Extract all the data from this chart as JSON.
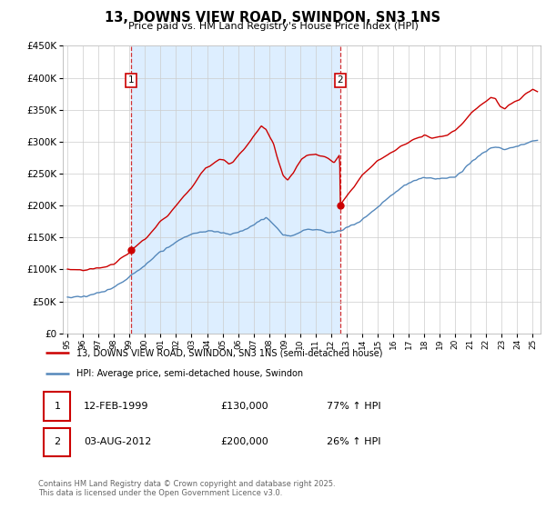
{
  "title": "13, DOWNS VIEW ROAD, SWINDON, SN3 1NS",
  "subtitle": "Price paid vs. HM Land Registry's House Price Index (HPI)",
  "legend_line1": "13, DOWNS VIEW ROAD, SWINDON, SN3 1NS (semi-detached house)",
  "legend_line2": "HPI: Average price, semi-detached house, Swindon",
  "annotation1_date": "12-FEB-1999",
  "annotation1_price": "£130,000",
  "annotation1_hpi": "77% ↑ HPI",
  "annotation2_date": "03-AUG-2012",
  "annotation2_price": "£200,000",
  "annotation2_hpi": "26% ↑ HPI",
  "footer": "Contains HM Land Registry data © Crown copyright and database right 2025.\nThis data is licensed under the Open Government Licence v3.0.",
  "red_color": "#cc0000",
  "blue_color": "#5588bb",
  "shade_color": "#ddeeff",
  "vline_color": "#cc0000",
  "purchase1_year": 1999.12,
  "purchase1_value": 130000,
  "purchase2_year": 2012.59,
  "purchase2_value": 200000,
  "ylim": [
    0,
    450000
  ],
  "xlim": [
    1994.7,
    2025.5
  ],
  "bg_color": "#ffffff",
  "grid_color": "#cccccc"
}
